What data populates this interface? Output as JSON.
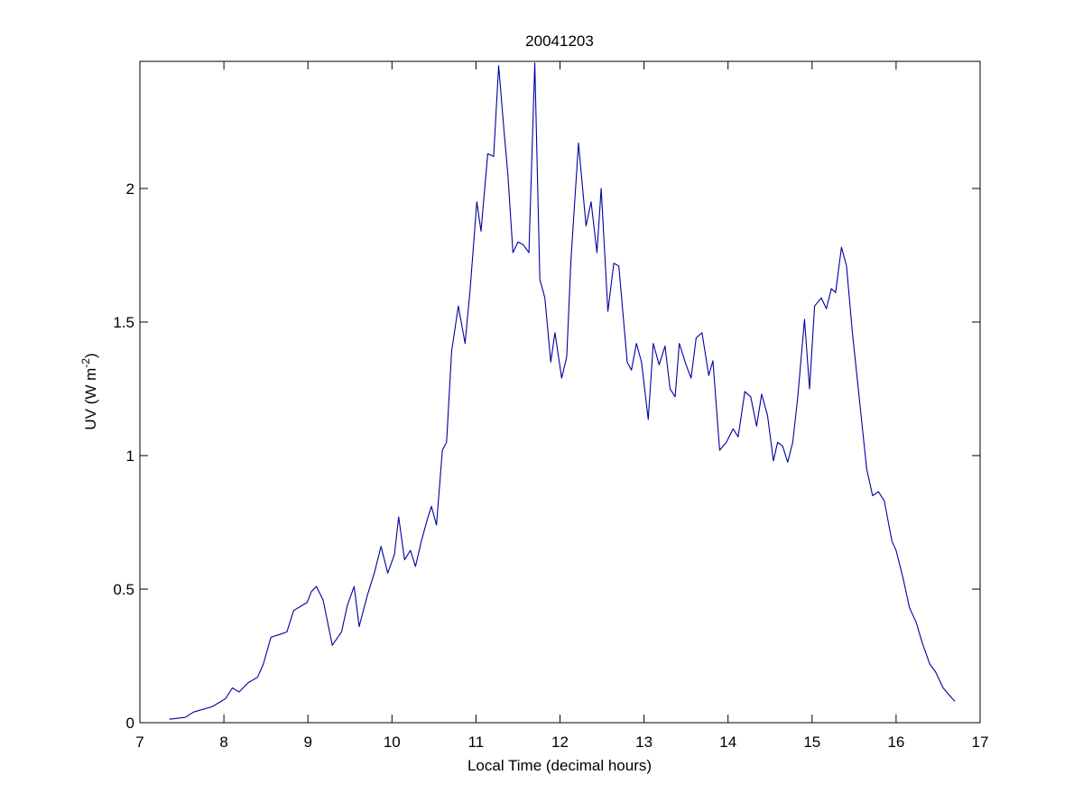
{
  "chart_data": {
    "type": "line",
    "title": "20041203",
    "xlabel": "Local Time (decimal hours)",
    "ylabel": [
      "UV (W m",
      "-2",
      ")"
    ],
    "xlim": [
      7,
      17
    ],
    "ylim": [
      0,
      2.476
    ],
    "xticks": [
      7,
      8,
      9,
      10,
      11,
      12,
      13,
      14,
      15,
      16,
      17
    ],
    "yticks": [
      0,
      0.5,
      1,
      1.5,
      2
    ],
    "grid": false,
    "series": [
      {
        "color": "#0000a0",
        "x": [
          7.35,
          7.54,
          7.64,
          7.86,
          8.02,
          8.1,
          8.18,
          8.29,
          8.4,
          8.47,
          8.56,
          8.66,
          8.75,
          8.83,
          8.91,
          8.99,
          9.04,
          9.1,
          9.18,
          9.29,
          9.4,
          9.47,
          9.55,
          9.61,
          9.71,
          9.79,
          9.87,
          9.95,
          10.03,
          10.08,
          10.15,
          10.22,
          10.28,
          10.35,
          10.42,
          10.47,
          10.53,
          10.6,
          10.65,
          10.71,
          10.79,
          10.87,
          10.93,
          11.01,
          11.06,
          11.14,
          11.21,
          11.27,
          11.33,
          11.38,
          11.44,
          11.5,
          11.56,
          11.63,
          11.7,
          11.76,
          11.82,
          11.89,
          11.94,
          12.02,
          12.08,
          12.13,
          12.22,
          12.31,
          12.37,
          12.44,
          12.49,
          12.57,
          12.64,
          12.7,
          12.8,
          12.85,
          12.91,
          12.97,
          13.05,
          13.11,
          13.18,
          13.25,
          13.31,
          13.37,
          13.42,
          13.5,
          13.56,
          13.62,
          13.69,
          13.77,
          13.82,
          13.9,
          13.98,
          14.06,
          14.12,
          14.2,
          14.27,
          14.34,
          14.4,
          14.47,
          14.54,
          14.59,
          14.65,
          14.71,
          14.77,
          14.83,
          14.91,
          14.97,
          15.03,
          15.11,
          15.17,
          15.23,
          15.28,
          15.35,
          15.41,
          15.48,
          15.56,
          15.65,
          15.72,
          15.79,
          15.86,
          15.95,
          16.0,
          16.08,
          16.16,
          16.24,
          16.31,
          16.4,
          16.47,
          16.56,
          16.67,
          16.7
        ],
        "values": [
          0.013,
          0.02,
          0.04,
          0.06,
          0.09,
          0.13,
          0.115,
          0.15,
          0.17,
          0.22,
          0.32,
          0.33,
          0.34,
          0.42,
          0.435,
          0.45,
          0.49,
          0.51,
          0.46,
          0.29,
          0.34,
          0.44,
          0.51,
          0.36,
          0.48,
          0.56,
          0.66,
          0.56,
          0.63,
          0.77,
          0.61,
          0.645,
          0.585,
          0.68,
          0.76,
          0.81,
          0.74,
          1.02,
          1.05,
          1.39,
          1.56,
          1.42,
          1.62,
          1.95,
          1.84,
          2.13,
          2.12,
          2.46,
          2.23,
          2.05,
          1.76,
          1.8,
          1.79,
          1.76,
          2.47,
          1.66,
          1.59,
          1.35,
          1.46,
          1.29,
          1.37,
          1.73,
          2.17,
          1.86,
          1.95,
          1.76,
          2.0,
          1.54,
          1.72,
          1.71,
          1.35,
          1.32,
          1.42,
          1.35,
          1.135,
          1.42,
          1.34,
          1.41,
          1.25,
          1.22,
          1.42,
          1.34,
          1.29,
          1.44,
          1.46,
          1.3,
          1.355,
          1.02,
          1.05,
          1.1,
          1.07,
          1.24,
          1.22,
          1.11,
          1.23,
          1.15,
          0.98,
          1.05,
          1.035,
          0.975,
          1.05,
          1.22,
          1.51,
          1.25,
          1.56,
          1.59,
          1.55,
          1.625,
          1.61,
          1.78,
          1.71,
          1.46,
          1.22,
          0.95,
          0.85,
          0.865,
          0.83,
          0.68,
          0.645,
          0.545,
          0.43,
          0.375,
          0.3,
          0.22,
          0.19,
          0.13,
          0.09,
          0.08
        ]
      }
    ]
  }
}
